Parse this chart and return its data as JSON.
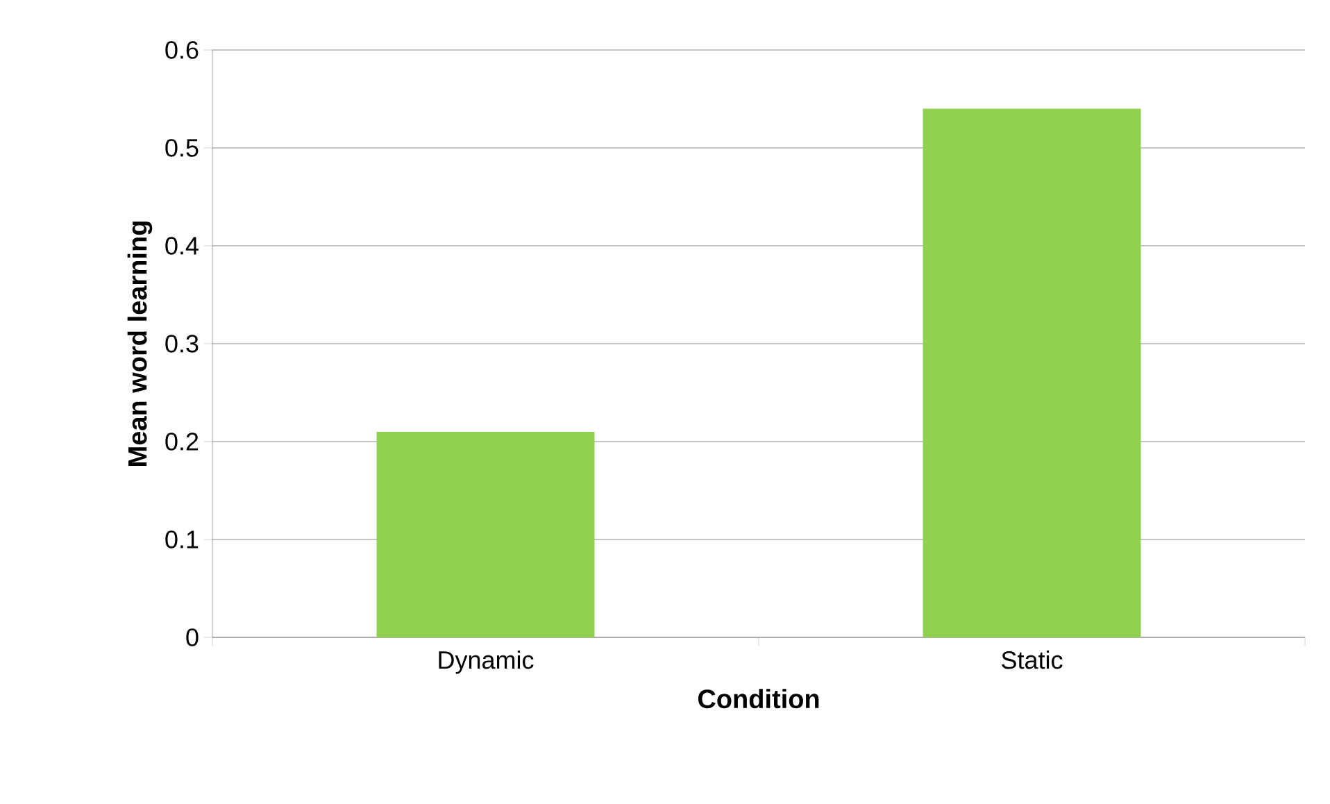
{
  "chart_data": {
    "type": "bar",
    "xlabel": "Condition",
    "ylabel": "Mean word learning",
    "categories": [
      "Dynamic",
      "Static"
    ],
    "values": [
      0.21,
      0.54
    ],
    "color": "#92d050",
    "ylim": [
      0,
      0.6
    ],
    "yticks": [
      0,
      0.1,
      0.2,
      0.3,
      0.4,
      0.5,
      0.6
    ],
    "grid": "y"
  }
}
